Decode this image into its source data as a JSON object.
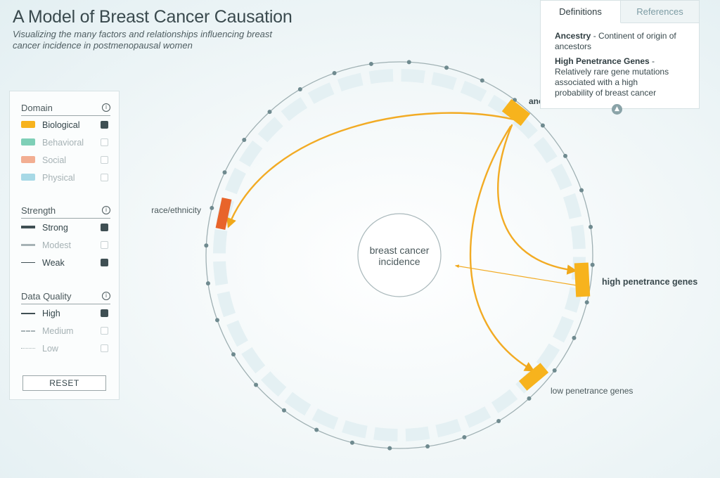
{
  "header": {
    "title": "A Model of Breast Cancer Causation",
    "subtitle": "Visualizing the many factors and relationships influencing breast cancer incidence in postmenopausal women"
  },
  "legend": {
    "domain": {
      "heading": "Domain",
      "items": [
        {
          "label": "Biological",
          "color": "#f7b31d",
          "checked": true
        },
        {
          "label": "Behavioral",
          "color": "#7ecfb7",
          "checked": false
        },
        {
          "label": "Social",
          "color": "#f2ae92",
          "checked": false
        },
        {
          "label": "Physical",
          "color": "#a7d9e6",
          "checked": false
        }
      ]
    },
    "strength": {
      "heading": "Strength",
      "items": [
        {
          "label": "Strong",
          "checked": true
        },
        {
          "label": "Modest",
          "checked": false
        },
        {
          "label": "Weak",
          "checked": true
        }
      ]
    },
    "quality": {
      "heading": "Data Quality",
      "items": [
        {
          "label": "High",
          "checked": true
        },
        {
          "label": "Medium",
          "checked": false
        },
        {
          "label": "Low",
          "checked": false
        }
      ]
    },
    "reset_label": "RESET"
  },
  "definitions_panel": {
    "tabs": [
      {
        "label": "Definitions",
        "active": true
      },
      {
        "label": "References",
        "active": false
      }
    ],
    "entries": [
      {
        "term": "Ancestry",
        "definition": " - Continent of origin of ancestors"
      },
      {
        "term": "High Penetrance Genes",
        "definition": " - Relatively rare gene mutations associated with a high probability of breast cancer"
      }
    ],
    "collapse_icon": "chevron-up-icon"
  },
  "diagram": {
    "center_label_line1": "breast cancer",
    "center_label_line2": "incidence",
    "nodes": {
      "ancestry": "anc",
      "race": "race/ethnicity",
      "high_genes": "high penetrance genes",
      "low_genes": "low penetrance genes"
    },
    "colors": {
      "biological": "#f7b31d",
      "race_node": "#e8642a",
      "ring_track": "#e4f0f3",
      "ring_line": "#9fb0b3",
      "dot": "#6f8a8f"
    }
  }
}
